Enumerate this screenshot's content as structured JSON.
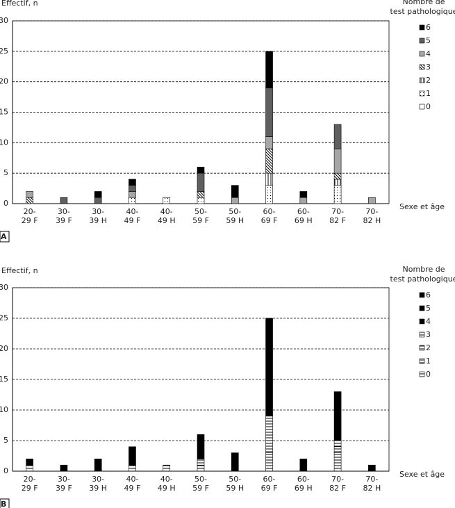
{
  "chart_data": [
    {
      "type": "bar",
      "stacked": true,
      "panel_label": "A",
      "y_label": "Effectif, n",
      "x_label": "Sexe et âge",
      "legend_title": [
        "Nombre de",
        "test pathologique"
      ],
      "legend_position": "right",
      "grid": true,
      "categories": [
        [
          "20-",
          "29 F"
        ],
        [
          "30-",
          "39 F"
        ],
        [
          "30-",
          "39 H"
        ],
        [
          "40-",
          "49 F"
        ],
        [
          "40-",
          "49 H"
        ],
        [
          "50-",
          "59 F"
        ],
        [
          "50-",
          "59 H"
        ],
        [
          "60-",
          "69 F"
        ],
        [
          "60-",
          "69 H"
        ],
        [
          "70-",
          "82 F"
        ],
        [
          "70-",
          "82 H"
        ]
      ],
      "ylim": [
        0,
        30
      ],
      "yticks": [
        0,
        5,
        10,
        15,
        20,
        25,
        30
      ],
      "series": [
        {
          "name": "0",
          "color": "#ffffff",
          "pattern": "solid",
          "values": [
            0,
            0,
            0,
            0,
            0,
            0,
            0,
            0,
            0,
            0,
            0
          ]
        },
        {
          "name": "1",
          "color": "#000000",
          "pattern": "dots",
          "values": [
            0,
            0,
            0,
            1,
            1,
            1,
            0,
            3,
            0,
            3,
            0
          ]
        },
        {
          "name": "2",
          "color": "#000000",
          "pattern": "vlines",
          "values": [
            0,
            0,
            0,
            0,
            0,
            0,
            0,
            2,
            0,
            1,
            0
          ]
        },
        {
          "name": "3",
          "color": "#000000",
          "pattern": "diagonal",
          "values": [
            1,
            0,
            0,
            0,
            0,
            1,
            0,
            4,
            0,
            1,
            0
          ]
        },
        {
          "name": "4",
          "color": "#a6a6a6",
          "pattern": "solid",
          "values": [
            1,
            0,
            0,
            1,
            0,
            0,
            1,
            2,
            1,
            4,
            1
          ]
        },
        {
          "name": "5",
          "color": "#5f5f5f",
          "pattern": "solid",
          "values": [
            0,
            1,
            1,
            1,
            0,
            3,
            0,
            8,
            0,
            4,
            0
          ]
        },
        {
          "name": "6",
          "color": "#000000",
          "pattern": "solid",
          "values": [
            0,
            0,
            1,
            1,
            0,
            1,
            2,
            6,
            1,
            0,
            0
          ]
        }
      ]
    },
    {
      "type": "bar",
      "stacked": true,
      "panel_label": "B",
      "y_label": "Effectif, n",
      "x_label": "Sexe et âge",
      "legend_title": [
        "Nombre de",
        "test pathologique"
      ],
      "legend_position": "right",
      "grid": true,
      "categories": [
        [
          "20-",
          "29 F"
        ],
        [
          "30-",
          "39 F"
        ],
        [
          "30-",
          "39 H"
        ],
        [
          "40-",
          "49 F"
        ],
        [
          "40-",
          "49 H"
        ],
        [
          "50-",
          "59 F"
        ],
        [
          "50-",
          "59 H"
        ],
        [
          "60-",
          "69 F"
        ],
        [
          "60-",
          "69 H"
        ],
        [
          "70-",
          "82 F"
        ],
        [
          "70-",
          "82 H"
        ]
      ],
      "ylim": [
        0,
        30
      ],
      "yticks": [
        0,
        5,
        10,
        15,
        20,
        25,
        30
      ],
      "series": [
        {
          "name": "0",
          "color": "#000000",
          "pattern": "hlines",
          "values": [
            0,
            0,
            0,
            0,
            0,
            0,
            0,
            0,
            0,
            0,
            0
          ]
        },
        {
          "name": "1",
          "color": "#000000",
          "pattern": "hlines",
          "values": [
            0,
            0,
            0,
            1,
            1,
            1,
            0,
            3,
            0,
            3,
            0
          ]
        },
        {
          "name": "2",
          "color": "#000000",
          "pattern": "hlines",
          "values": [
            0,
            0,
            0,
            0,
            0,
            0,
            0,
            2,
            0,
            1,
            0
          ]
        },
        {
          "name": "3",
          "color": "#000000",
          "pattern": "hlines",
          "values": [
            1,
            0,
            0,
            0,
            0,
            1,
            0,
            4,
            0,
            1,
            0
          ]
        },
        {
          "name": "4",
          "color": "#000000",
          "pattern": "solid",
          "values": [
            1,
            0,
            0,
            1,
            0,
            0,
            1,
            2,
            1,
            4,
            1
          ]
        },
        {
          "name": "5",
          "color": "#000000",
          "pattern": "solid",
          "values": [
            0,
            1,
            1,
            1,
            0,
            3,
            0,
            8,
            0,
            4,
            0
          ]
        },
        {
          "name": "6",
          "color": "#000000",
          "pattern": "solid",
          "values": [
            0,
            0,
            1,
            1,
            0,
            1,
            2,
            6,
            1,
            0,
            0
          ]
        }
      ]
    }
  ]
}
